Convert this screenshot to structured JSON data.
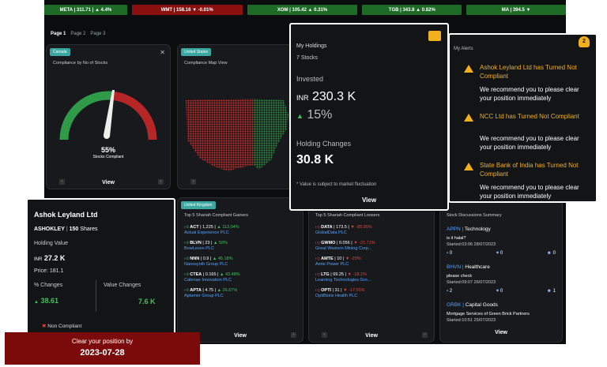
{
  "ticker": [
    {
      "text": "META | 311.71 | ▲ 4.4%",
      "tone": "g",
      "w": 105
    },
    {
      "text": "WMT | 158.16 ▼ -0.01%",
      "tone": "r",
      "w": 140
    },
    {
      "text": "XOM | 105.42 ▲ 0.31%",
      "tone": "g",
      "w": 140
    },
    {
      "text": "TGB | 343.8 ▲ 0.82%",
      "tone": "g",
      "w": 126
    },
    {
      "text": "MA | 394.5 ▼",
      "tone": "g",
      "w": 126
    }
  ],
  "pages": [
    "Page 1",
    "Page 2",
    "Page 3"
  ],
  "compliance_stocks": {
    "chip": "Canada",
    "title": "Compliance by No of Stocks",
    "percent": "55%",
    "label": "Stocks Compliant",
    "view": "View",
    "close": "✕"
  },
  "compliance_map": {
    "chip": "United States",
    "title": "Compliance Map View"
  },
  "holdings": {
    "title": "My Holdings",
    "count": "7 Stocks",
    "invested_label": "Invested",
    "currency": "INR",
    "invested": "230.3 K",
    "change": "15%",
    "changes_label": "Holding Changes",
    "changes_value": "30.8 K",
    "note": "Value is subject to market fluctuation",
    "view": "View"
  },
  "alerts": {
    "title": "My Alerts",
    "badge": "2",
    "items": [
      {
        "headline": "Ashok Leyland Ltd has Turned Not Compliant",
        "body": "We recommend you to please clear your position immediately"
      },
      {
        "headline": "NCC Ltd has Turned Not Compliant",
        "body": "We recommend you to please clear your position immediately"
      },
      {
        "headline": "State Bank of India has Turned Not Compliant",
        "body": "We recommend you to please clear your position immediately"
      }
    ]
  },
  "gainers": {
    "chip": "United Kingdom",
    "title": "Top 5 Shariah Compliant Gainers",
    "view": "View",
    "rows": [
      {
        "sym": "ACT",
        "a": "1,225",
        "b": "▲ 113.04%",
        "name": "Actual Experience PLC"
      },
      {
        "sym": "BLVN",
        "a": "23",
        "b": "▲ 50%",
        "name": "BowLeven PLC"
      },
      {
        "sym": "NNN",
        "a": "0.9",
        "b": "▲ 45.18%",
        "name": "Nanosynth Group PLC"
      },
      {
        "sym": "CTEA",
        "a": "0.165",
        "b": "▲ 43.48%",
        "name": "Catenae Innovation PLC"
      },
      {
        "sym": "APTA",
        "a": "4.75",
        "b": "▲ 26.67%",
        "name": "Aptamer Group PLC"
      }
    ]
  },
  "losers": {
    "title": "Top 5 Shariah Compliant Loosers",
    "view": "View",
    "rows": [
      {
        "sym": "DATA",
        "a": "173.5",
        "b": "▼ -85.95%",
        "name": "GlobalData PLC"
      },
      {
        "sym": "GWMO",
        "a": "0.056",
        "b": "▼ -21.71%",
        "name": "Great Western Mining Corp..."
      },
      {
        "sym": "AMTE",
        "a": "10",
        "b": "▼ -20%",
        "name": "Amte Power PLC"
      },
      {
        "sym": "LTG",
        "a": "69.25",
        "b": "▼ -18.1%",
        "name": "Learning Technologies Gro..."
      },
      {
        "sym": "OPTI",
        "a": "31",
        "b": "▼ -17.55%",
        "name": "OptiBiotix Health PLC"
      }
    ]
  },
  "discussions": {
    "title": "Stock Discussions Summary",
    "view": "View",
    "items": [
      {
        "sym": "APPN",
        "sector": "Technology",
        "text": "is it halal?",
        "started": "Started:03:06 28/07/2023",
        "c": "0",
        "l": "0",
        "u": "0"
      },
      {
        "sym": "BHVN",
        "sector": "Healthcare",
        "text": "please check",
        "started": "Started:09:07 26/07/2023",
        "c": "2",
        "l": "0",
        "u": "1"
      },
      {
        "sym": "GRBK",
        "sector": "Capital Goods",
        "text": "Mortgage Services of Green Brick Partners",
        "started": "Started:10:51 25/07/2023"
      }
    ]
  },
  "ashok": {
    "title": "Ashok Leyland Ltd",
    "sym": "ASHOKLEY",
    "qty": "150",
    "shares": "Shares",
    "holding_label": "Holding Value",
    "currency": "INR",
    "holding_value": "27.2 K",
    "price": "Price: 181.1",
    "pct_label": "% Changes",
    "pct_value": "38.61",
    "val_label": "Value Changes",
    "val_value": "7.6 K",
    "status": "Non Compliant"
  },
  "banner": {
    "line1": "Clear your position by",
    "line2": "2023-07-28"
  }
}
